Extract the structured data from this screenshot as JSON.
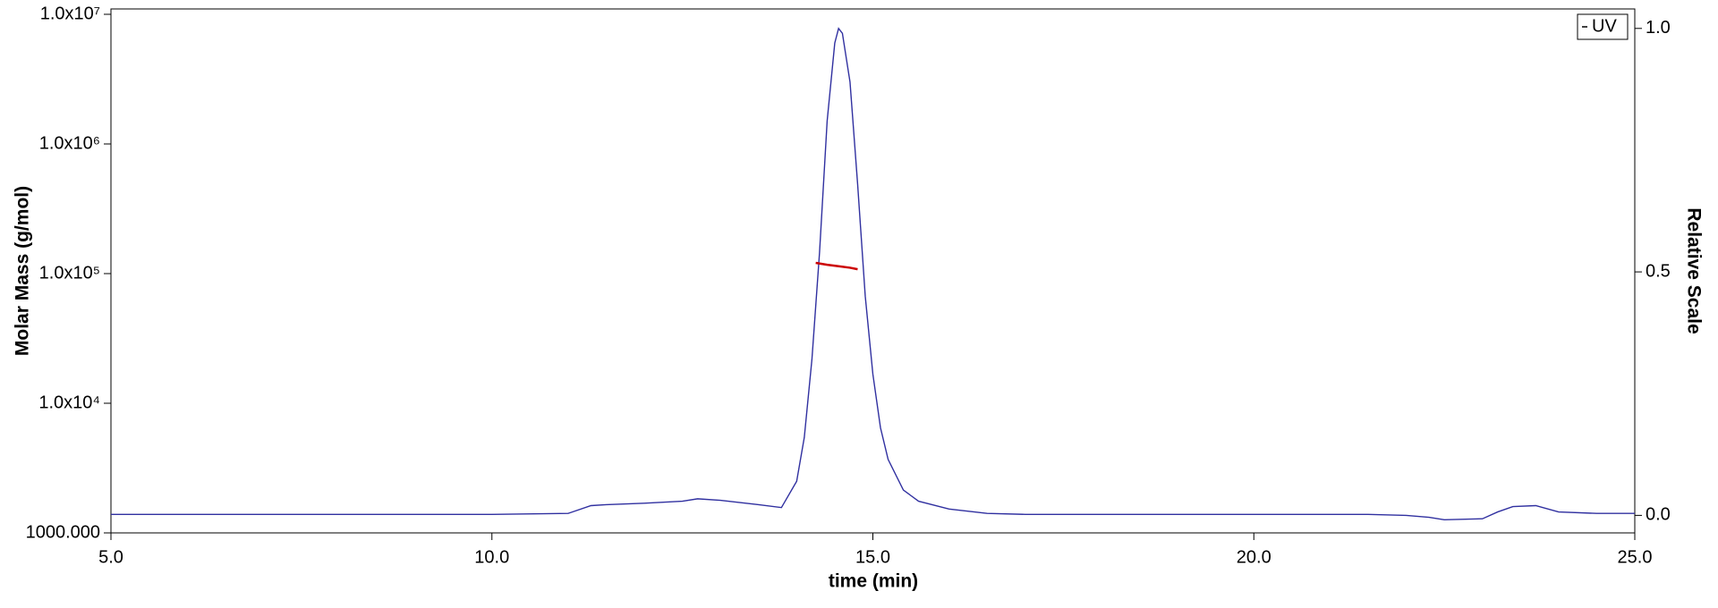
{
  "chart_data": {
    "type": "line",
    "x_label": "time (min)",
    "y_label": "Molar Mass (g/mol)",
    "y2_label": "Relative Scale",
    "xlim": [
      5,
      25
    ],
    "xticks": [
      {
        "value": 5,
        "label": "5.0"
      },
      {
        "value": 10,
        "label": "10.0"
      },
      {
        "value": 15,
        "label": "15.0"
      },
      {
        "value": 20,
        "label": "20.0"
      },
      {
        "value": 25,
        "label": "25.0"
      }
    ],
    "ylim": [
      1000,
      11000000
    ],
    "ylog": true,
    "yticks": [
      {
        "value": 1000,
        "label": "1000.000"
      },
      {
        "value": 10000,
        "label": "1.0x10⁴"
      },
      {
        "value": 100000,
        "label": "1.0x10⁵"
      },
      {
        "value": 1000000,
        "label": "1.0x10⁶"
      },
      {
        "value": 10000000,
        "label": "1.0x10⁷"
      }
    ],
    "y2lim": [
      -0.036,
      1.04
    ],
    "y2ticks": [
      {
        "value": 0,
        "label": "0.0"
      },
      {
        "value": 0.5,
        "label": "0.5"
      },
      {
        "value": 1,
        "label": "1.0"
      }
    ],
    "legend": "upper right",
    "series": [
      {
        "name": "UV",
        "color": "#3030a0",
        "axis": "y2",
        "x": [
          5,
          10,
          11.0,
          11.3,
          11.5,
          12.0,
          12.5,
          12.7,
          13.0,
          13.5,
          13.8,
          14.0,
          14.1,
          14.2,
          14.3,
          14.4,
          14.5,
          14.55,
          14.6,
          14.7,
          14.8,
          14.9,
          15.0,
          15.1,
          15.2,
          15.4,
          15.6,
          16.0,
          16.5,
          17,
          21.5,
          22.0,
          22.3,
          22.5,
          23.0,
          23.2,
          23.4,
          23.7,
          24.0,
          24.5,
          25
        ],
        "values": [
          0.002,
          0.002,
          0.004,
          0.02,
          0.022,
          0.025,
          0.029,
          0.034,
          0.031,
          0.022,
          0.016,
          0.07,
          0.16,
          0.32,
          0.54,
          0.81,
          0.97,
          1.0,
          0.99,
          0.89,
          0.68,
          0.45,
          0.29,
          0.18,
          0.115,
          0.052,
          0.029,
          0.013,
          0.004,
          0.002,
          0.002,
          0.0,
          -0.004,
          -0.009,
          -0.007,
          0.007,
          0.018,
          0.02,
          0.007,
          0.004,
          0.004
        ]
      },
      {
        "color": "#cc0000",
        "axis": "y",
        "x": [
          14.25,
          14.4,
          14.55,
          14.7,
          14.8
        ],
        "values": [
          121000,
          117000,
          114000,
          111000,
          108000
        ]
      }
    ]
  }
}
